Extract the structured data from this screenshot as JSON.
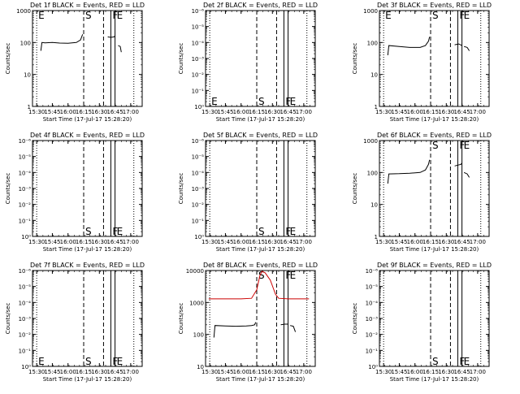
{
  "chart_data": [
    {
      "type": "line",
      "title": "Det 1f BLACK = Events, RED = LLD",
      "xlabel": "Start Time (17-Jul-17 15:28:20)",
      "ylabel": "Counts/sec",
      "x_ticks": [
        "15:30",
        "15:45",
        "16:00",
        "16:15",
        "16:30",
        "16:45",
        "17:00"
      ],
      "y_ticks": [
        "1",
        "10",
        "100",
        "1000"
      ],
      "scale": "log",
      "ylim": [
        1,
        1000
      ],
      "markers": [
        {
          "label": "E",
          "time": "15:30",
          "style": "dotted",
          "side": "top"
        },
        {
          "label": "S",
          "time": "16:15",
          "style": "dashed",
          "side": "top"
        },
        {
          "label": "",
          "time": "16:34",
          "style": "dashed",
          "side": "top"
        },
        {
          "label": "F",
          "time": "16:41",
          "style": "solid",
          "side": "top"
        },
        {
          "label": "E",
          "time": "16:45",
          "style": "solid",
          "side": "top"
        },
        {
          "label": "",
          "time": "17:03",
          "style": "dotted",
          "side": "top"
        }
      ],
      "series": [
        {
          "color": "#000000",
          "segments": [
            {
              "points": [
                [
                  "15:34",
                  55
                ],
                [
                  "15:35",
                  100
                ],
                [
                  "15:38",
                  98
                ],
                [
                  "15:45",
                  100
                ],
                [
                  "15:52",
                  96
                ],
                [
                  "16:00",
                  95
                ],
                [
                  "16:08",
                  100
                ],
                [
                  "16:12",
                  120
                ],
                [
                  "16:14",
                  180
                ]
              ]
            },
            {
              "points": [
                [
                  "16:38",
                  150
                ],
                [
                  "16:41",
                  145
                ],
                [
                  "16:44",
                  150
                ],
                [
                  "16:45",
                  160
                ]
              ]
            },
            {
              "points": [
                [
                  "16:48",
                  80
                ],
                [
                  "16:50",
                  75
                ],
                [
                  "16:51",
                  50
                ]
              ]
            }
          ]
        }
      ]
    },
    {
      "type": "line",
      "title": "Det 2f BLACK = Events, RED = LLD",
      "xlabel": "Start Time (17-Jul-17 15:28:20)",
      "ylabel": "Counts/sec",
      "x_ticks": [
        "15:30",
        "15:45",
        "16:00",
        "16:15",
        "16:30",
        "16:45",
        "17:00"
      ],
      "y_ticks": [
        "10⁰",
        "10⁻¹",
        "10⁻²",
        "10⁻³",
        "10⁻⁴",
        "10⁻⁵",
        "10⁻⁶"
      ],
      "scale": "log",
      "ylim": [
        1,
        1000000
      ],
      "markers": [
        {
          "label": "E",
          "time": "15:30",
          "style": "dotted",
          "side": "bottom"
        },
        {
          "label": "S",
          "time": "16:15",
          "style": "dashed",
          "side": "bottom"
        },
        {
          "label": "",
          "time": "16:34",
          "style": "dashed",
          "side": "bottom"
        },
        {
          "label": "F",
          "time": "16:41",
          "style": "solid",
          "side": "bottom"
        },
        {
          "label": "E",
          "time": "16:45",
          "style": "solid",
          "side": "bottom"
        },
        {
          "label": "",
          "time": "17:03",
          "style": "dotted",
          "side": "bottom"
        }
      ],
      "series": []
    },
    {
      "type": "line",
      "title": "Det 3f BLACK = Events, RED = LLD",
      "xlabel": "Start Time (17-Jul-17 15:28:20)",
      "ylabel": "Counts/sec",
      "x_ticks": [
        "15:30",
        "15:45",
        "16:00",
        "16:15",
        "16:30",
        "16:45",
        "17:00"
      ],
      "y_ticks": [
        "1",
        "10",
        "100",
        "1000"
      ],
      "scale": "log",
      "ylim": [
        1,
        1000
      ],
      "markers": [
        {
          "label": "E",
          "time": "15:30",
          "style": "dotted",
          "side": "top"
        },
        {
          "label": "S",
          "time": "16:15",
          "style": "dashed",
          "side": "top"
        },
        {
          "label": "",
          "time": "16:34",
          "style": "dashed",
          "side": "top"
        },
        {
          "label": "F",
          "time": "16:41",
          "style": "solid",
          "side": "top"
        },
        {
          "label": "E",
          "time": "16:45",
          "style": "solid",
          "side": "top"
        },
        {
          "label": "",
          "time": "17:03",
          "style": "dotted",
          "side": "top"
        }
      ],
      "series": [
        {
          "color": "#000000",
          "segments": [
            {
              "points": [
                [
                  "15:34",
                  40
                ],
                [
                  "15:35",
                  80
                ],
                [
                  "15:45",
                  75
                ],
                [
                  "15:55",
                  70
                ],
                [
                  "16:05",
                  70
                ],
                [
                  "16:10",
                  80
                ],
                [
                  "16:13",
                  110
                ],
                [
                  "16:14",
                  150
                ]
              ]
            },
            {
              "points": [
                [
                  "16:38",
                  85
                ],
                [
                  "16:42",
                  90
                ],
                [
                  "16:45",
                  80
                ]
              ]
            },
            {
              "points": [
                [
                  "16:47",
                  75
                ],
                [
                  "16:50",
                  70
                ],
                [
                  "16:52",
                  55
                ]
              ]
            }
          ]
        }
      ]
    },
    {
      "type": "line",
      "title": "Det 4f BLACK = Events, RED = LLD",
      "xlabel": "Start Time (17-Jul-17 15:28:20)",
      "ylabel": "Counts/sec",
      "x_ticks": [
        "15:30",
        "15:45",
        "16:00",
        "16:15",
        "16:30",
        "16:45",
        "17:00"
      ],
      "y_ticks": [
        "10⁰",
        "10⁻¹",
        "10⁻²",
        "10⁻³",
        "10⁻⁴",
        "10⁻⁵",
        "10⁻⁶"
      ],
      "scale": "log",
      "ylim": [
        1,
        1000000
      ],
      "markers": [
        {
          "label": "",
          "time": "15:30",
          "style": "dotted",
          "side": "bottom"
        },
        {
          "label": "S",
          "time": "16:15",
          "style": "dashed",
          "side": "bottom"
        },
        {
          "label": "",
          "time": "16:34",
          "style": "dashed",
          "side": "bottom"
        },
        {
          "label": "F",
          "time": "16:41",
          "style": "solid",
          "side": "bottom"
        },
        {
          "label": "E",
          "time": "16:45",
          "style": "solid",
          "side": "bottom"
        },
        {
          "label": "",
          "time": "17:03",
          "style": "dotted",
          "side": "bottom"
        }
      ],
      "series": []
    },
    {
      "type": "line",
      "title": "Det 5f BLACK = Events, RED = LLD",
      "xlabel": "Start Time (17-Jul-17 15:28:20)",
      "ylabel": "Counts/sec",
      "x_ticks": [
        "15:30",
        "15:45",
        "16:00",
        "16:15",
        "16:30",
        "16:45",
        "17:00"
      ],
      "y_ticks": [
        "10⁰",
        "10⁻¹",
        "10⁻²",
        "10⁻³",
        "10⁻⁴",
        "10⁻⁵",
        "10⁻⁶"
      ],
      "scale": "log",
      "ylim": [
        1,
        1000000
      ],
      "markers": [
        {
          "label": "",
          "time": "15:30",
          "style": "dotted",
          "side": "bottom"
        },
        {
          "label": "S",
          "time": "16:15",
          "style": "dashed",
          "side": "bottom"
        },
        {
          "label": "",
          "time": "16:34",
          "style": "dashed",
          "side": "bottom"
        },
        {
          "label": "F",
          "time": "16:41",
          "style": "solid",
          "side": "bottom"
        },
        {
          "label": "E",
          "time": "16:45",
          "style": "solid",
          "side": "bottom"
        },
        {
          "label": "",
          "time": "17:03",
          "style": "dotted",
          "side": "bottom"
        }
      ],
      "series": []
    },
    {
      "type": "line",
      "title": "Det 6f BLACK = Events, RED = LLD",
      "xlabel": "Start Time (17-Jul-17 15:28:20)",
      "ylabel": "Counts/sec",
      "x_ticks": [
        "15:30",
        "15:45",
        "16:00",
        "16:15",
        "16:30",
        "16:45",
        "17:00"
      ],
      "y_ticks": [
        "1",
        "10",
        "100",
        "1000"
      ],
      "scale": "log",
      "ylim": [
        1,
        1000
      ],
      "markers": [
        {
          "label": "",
          "time": "15:30",
          "style": "dotted",
          "side": "top"
        },
        {
          "label": "S",
          "time": "16:15",
          "style": "dashed",
          "side": "top"
        },
        {
          "label": "",
          "time": "16:34",
          "style": "dashed",
          "side": "top"
        },
        {
          "label": "F",
          "time": "16:41",
          "style": "solid",
          "side": "top"
        },
        {
          "label": "E",
          "time": "16:45",
          "style": "solid",
          "side": "top"
        },
        {
          "label": "",
          "time": "17:03",
          "style": "dotted",
          "side": "top"
        }
      ],
      "series": [
        {
          "color": "#000000",
          "segments": [
            {
              "points": [
                [
                  "15:34",
                  45
                ],
                [
                  "15:35",
                  90
                ],
                [
                  "15:45",
                  92
                ],
                [
                  "15:55",
                  95
                ],
                [
                  "16:05",
                  100
                ],
                [
                  "16:10",
                  120
                ],
                [
                  "16:13",
                  180
                ],
                [
                  "16:14",
                  250
                ]
              ]
            },
            {
              "points": [
                [
                  "16:38",
                  160
                ],
                [
                  "16:41",
                  170
                ],
                [
                  "16:44",
                  180
                ],
                [
                  "16:45",
                  200
                ]
              ]
            },
            {
              "points": [
                [
                  "16:47",
                  100
                ],
                [
                  "16:50",
                  90
                ],
                [
                  "16:52",
                  70
                ]
              ]
            }
          ]
        }
      ]
    },
    {
      "type": "line",
      "title": "Det 7f BLACK = Events, RED = LLD",
      "xlabel": "Start Time (17-Jul-17 15:28:20)",
      "ylabel": "Counts/sec",
      "x_ticks": [
        "15:30",
        "15:45",
        "16:00",
        "16:15",
        "16:30",
        "16:45",
        "17:00"
      ],
      "y_ticks": [
        "10⁰",
        "10⁻¹",
        "10⁻²",
        "10⁻³",
        "10⁻⁴",
        "10⁻⁵",
        "10⁻⁶"
      ],
      "scale": "log",
      "ylim": [
        1,
        1000000
      ],
      "markers": [
        {
          "label": "E",
          "time": "15:30",
          "style": "dotted",
          "side": "bottom"
        },
        {
          "label": "S",
          "time": "16:15",
          "style": "dashed",
          "side": "bottom"
        },
        {
          "label": "",
          "time": "16:34",
          "style": "dashed",
          "side": "bottom"
        },
        {
          "label": "F",
          "time": "16:41",
          "style": "solid",
          "side": "bottom"
        },
        {
          "label": "E",
          "time": "16:45",
          "style": "solid",
          "side": "bottom"
        },
        {
          "label": "",
          "time": "17:03",
          "style": "dotted",
          "side": "bottom"
        }
      ],
      "series": []
    },
    {
      "type": "line",
      "title": "Det 8f BLACK = Events, RED = LLD",
      "xlabel": "Start Time (17-Jul-17 15:28:20)",
      "ylabel": "Counts/sec",
      "x_ticks": [
        "15:30",
        "15:45",
        "16:00",
        "16:15",
        "16:30",
        "16:45",
        "17:00"
      ],
      "y_ticks": [
        "10",
        "100",
        "1000",
        "10000"
      ],
      "scale": "log",
      "ylim": [
        10,
        10000
      ],
      "markers": [
        {
          "label": "",
          "time": "15:30",
          "style": "dotted",
          "side": "top"
        },
        {
          "label": "S",
          "time": "16:15",
          "style": "dashed",
          "side": "top"
        },
        {
          "label": "",
          "time": "16:34",
          "style": "dashed",
          "side": "top"
        },
        {
          "label": "F",
          "time": "16:41",
          "style": "solid",
          "side": "top"
        },
        {
          "label": "E",
          "time": "16:45",
          "style": "solid",
          "side": "top"
        },
        {
          "label": "",
          "time": "17:03",
          "style": "dotted",
          "side": "top"
        }
      ],
      "series": [
        {
          "color": "#cc0000",
          "segments": [
            {
              "points": [
                [
                  "15:29",
                  1300
                ],
                [
                  "15:45",
                  1300
                ],
                [
                  "16:00",
                  1300
                ],
                [
                  "16:10",
                  1350
                ],
                [
                  "16:15",
                  2500
                ],
                [
                  "16:18",
                  7000
                ],
                [
                  "16:20",
                  9500
                ],
                [
                  "16:23",
                  8500
                ],
                [
                  "16:28",
                  5000
                ],
                [
                  "16:33",
                  1800
                ],
                [
                  "16:36",
                  1350
                ],
                [
                  "16:45",
                  1300
                ],
                [
                  "17:00",
                  1300
                ],
                [
                  "17:05",
                  1300
                ]
              ]
            }
          ]
        },
        {
          "color": "#000000",
          "segments": [
            {
              "points": [
                [
                  "15:34",
                  80
                ],
                [
                  "15:35",
                  190
                ],
                [
                  "15:45",
                  185
                ],
                [
                  "15:55",
                  180
                ],
                [
                  "16:05",
                  185
                ],
                [
                  "16:10",
                  190
                ],
                [
                  "16:13",
                  200
                ],
                [
                  "16:14",
                  240
                ]
              ]
            },
            {
              "points": [
                [
                  "16:38",
                  200
                ],
                [
                  "16:42",
                  210
                ],
                [
                  "16:45",
                  210
                ]
              ]
            },
            {
              "points": [
                [
                  "16:47",
                  190
                ],
                [
                  "16:50",
                  180
                ],
                [
                  "16:52",
                  120
                ]
              ]
            }
          ]
        }
      ]
    },
    {
      "type": "line",
      "title": "Det 9f BLACK = Events, RED = LLD",
      "xlabel": "Start Time (17-Jul-17 15:28:20)",
      "ylabel": "Counts/sec",
      "x_ticks": [
        "15:30",
        "15:45",
        "16:00",
        "16:15",
        "16:30",
        "16:45",
        "17:00"
      ],
      "y_ticks": [
        "10⁰",
        "10⁻¹",
        "10⁻²",
        "10⁻³",
        "10⁻⁴",
        "10⁻⁵",
        "10⁻⁶"
      ],
      "scale": "log",
      "ylim": [
        1,
        1000000
      ],
      "markers": [
        {
          "label": "",
          "time": "15:30",
          "style": "dotted",
          "side": "bottom"
        },
        {
          "label": "S",
          "time": "16:15",
          "style": "dashed",
          "side": "bottom"
        },
        {
          "label": "",
          "time": "16:34",
          "style": "dashed",
          "side": "bottom"
        },
        {
          "label": "F",
          "time": "16:41",
          "style": "solid",
          "side": "bottom"
        },
        {
          "label": "E",
          "time": "16:45",
          "style": "solid",
          "side": "bottom"
        },
        {
          "label": "",
          "time": "17:03",
          "style": "dotted",
          "side": "bottom"
        }
      ],
      "series": []
    }
  ]
}
